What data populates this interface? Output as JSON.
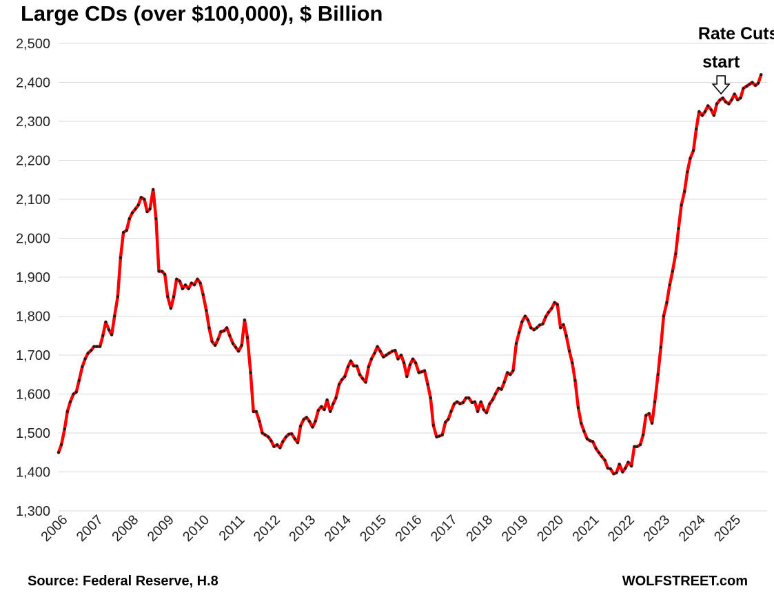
{
  "chart_data": {
    "type": "line",
    "title": "Large CDs (over $100,000), $ Billion",
    "source": "Source: Federal Reserve, H.8",
    "watermark": "WOLFSTREET.com",
    "ylim": [
      1300,
      2500
    ],
    "y_ticks": [
      "1,300",
      "1,400",
      "1,500",
      "1,600",
      "1,700",
      "1,800",
      "1,900",
      "2,000",
      "2,100",
      "2,200",
      "2,300",
      "2,400",
      "2,500"
    ],
    "x_tick_labels": [
      "2006",
      "2007",
      "2008",
      "2009",
      "2010",
      "2011",
      "2012",
      "2013",
      "2014",
      "2015",
      "2016",
      "2017",
      "2018",
      "2019",
      "2020",
      "2021",
      "2022",
      "2023",
      "2024",
      "2025"
    ],
    "x_range": [
      2006.0,
      2026.0
    ],
    "grid": "horizontal",
    "line_color": "#ff0000",
    "marker_color": "#1a1a1a",
    "annotations": [
      {
        "text_line1": "Rate Cuts",
        "text_line2": "start",
        "x": 2024.7
      }
    ],
    "series": [
      {
        "x": [
          2006.0,
          2006.08,
          2006.17,
          2006.25,
          2006.33,
          2006.42,
          2006.5,
          2006.58,
          2006.67,
          2006.75,
          2006.83,
          2006.92,
          2007.0,
          2007.08,
          2007.17,
          2007.25,
          2007.33,
          2007.42,
          2007.5,
          2007.58,
          2007.67,
          2007.75,
          2007.83,
          2007.92,
          2008.0,
          2008.08,
          2008.17,
          2008.25,
          2008.33,
          2008.42,
          2008.5,
          2008.58,
          2008.67,
          2008.75,
          2008.83,
          2008.92,
          2009.0,
          2009.08,
          2009.17,
          2009.25,
          2009.33,
          2009.42,
          2009.5,
          2009.58,
          2009.67,
          2009.75,
          2009.83,
          2009.92,
          2010.0,
          2010.08,
          2010.17,
          2010.25,
          2010.33,
          2010.42,
          2010.5,
          2010.58,
          2010.67,
          2010.75,
          2010.83,
          2010.92,
          2011.0,
          2011.08,
          2011.17,
          2011.25,
          2011.33,
          2011.42,
          2011.5,
          2011.58,
          2011.67,
          2011.75,
          2011.83,
          2011.92,
          2012.0,
          2012.08,
          2012.17,
          2012.25,
          2012.33,
          2012.42,
          2012.5,
          2012.58,
          2012.67,
          2012.75,
          2012.83,
          2012.92,
          2013.0,
          2013.08,
          2013.17,
          2013.25,
          2013.33,
          2013.42,
          2013.5,
          2013.58,
          2013.67,
          2013.75,
          2013.83,
          2013.92,
          2014.0,
          2014.08,
          2014.17,
          2014.25,
          2014.33,
          2014.42,
          2014.5,
          2014.58,
          2014.67,
          2014.75,
          2014.83,
          2014.92,
          2015.0,
          2015.08,
          2015.17,
          2015.25,
          2015.33,
          2015.42,
          2015.5,
          2015.58,
          2015.67,
          2015.75,
          2015.83,
          2015.92,
          2016.0,
          2016.08,
          2016.17,
          2016.25,
          2016.33,
          2016.42,
          2016.5,
          2016.58,
          2016.67,
          2016.75,
          2016.83,
          2016.92,
          2017.0,
          2017.08,
          2017.17,
          2017.25,
          2017.33,
          2017.42,
          2017.5,
          2017.58,
          2017.67,
          2017.75,
          2017.83,
          2017.92,
          2018.0,
          2018.08,
          2018.17,
          2018.25,
          2018.33,
          2018.42,
          2018.5,
          2018.58,
          2018.67,
          2018.75,
          2018.83,
          2018.92,
          2019.0,
          2019.08,
          2019.17,
          2019.25,
          2019.33,
          2019.42,
          2019.5,
          2019.58,
          2019.67,
          2019.75,
          2019.83,
          2019.92,
          2020.0,
          2020.08,
          2020.17,
          2020.25,
          2020.33,
          2020.42,
          2020.5,
          2020.58,
          2020.67,
          2020.75,
          2020.83,
          2020.92,
          2021.0,
          2021.08,
          2021.17,
          2021.25,
          2021.33,
          2021.42,
          2021.5,
          2021.58,
          2021.67,
          2021.75,
          2021.83,
          2021.92,
          2022.0,
          2022.08,
          2022.17,
          2022.25,
          2022.33,
          2022.42,
          2022.5,
          2022.58,
          2022.67,
          2022.75,
          2022.83,
          2022.92,
          2023.0,
          2023.08,
          2023.17,
          2023.25,
          2023.33,
          2023.42,
          2023.5,
          2023.58,
          2023.67,
          2023.75,
          2023.83,
          2023.92,
          2024.0,
          2024.08,
          2024.17,
          2024.25,
          2024.33,
          2024.42,
          2024.5,
          2024.58,
          2024.67,
          2024.75,
          2024.83,
          2024.92,
          2025.0,
          2025.08,
          2025.17,
          2025.25,
          2025.33,
          2025.42,
          2025.5,
          2025.58,
          2025.67,
          2025.75,
          2025.83
        ],
        "y": [
          1450,
          1470,
          1510,
          1555,
          1580,
          1600,
          1605,
          1635,
          1670,
          1690,
          1705,
          1712,
          1722,
          1722,
          1722,
          1750,
          1785,
          1765,
          1752,
          1800,
          1850,
          1950,
          2015,
          2020,
          2050,
          2065,
          2075,
          2085,
          2105,
          2100,
          2068,
          2075,
          2125,
          2050,
          1915,
          1915,
          1907,
          1850,
          1820,
          1850,
          1895,
          1890,
          1870,
          1880,
          1870,
          1885,
          1880,
          1895,
          1885,
          1855,
          1815,
          1770,
          1735,
          1725,
          1740,
          1760,
          1762,
          1770,
          1750,
          1730,
          1720,
          1710,
          1725,
          1790,
          1745,
          1655,
          1555,
          1555,
          1530,
          1500,
          1495,
          1490,
          1480,
          1465,
          1470,
          1462,
          1478,
          1490,
          1497,
          1498,
          1485,
          1475,
          1518,
          1535,
          1540,
          1530,
          1515,
          1530,
          1558,
          1568,
          1560,
          1585,
          1555,
          1575,
          1590,
          1625,
          1637,
          1645,
          1670,
          1685,
          1672,
          1672,
          1650,
          1640,
          1630,
          1670,
          1690,
          1705,
          1722,
          1710,
          1695,
          1700,
          1705,
          1710,
          1712,
          1690,
          1700,
          1680,
          1645,
          1675,
          1690,
          1680,
          1655,
          1657,
          1660,
          1625,
          1590,
          1520,
          1490,
          1492,
          1495,
          1528,
          1535,
          1555,
          1575,
          1580,
          1575,
          1578,
          1590,
          1590,
          1578,
          1580,
          1555,
          1580,
          1560,
          1552,
          1575,
          1585,
          1600,
          1615,
          1612,
          1630,
          1655,
          1650,
          1660,
          1730,
          1758,
          1785,
          1800,
          1790,
          1770,
          1765,
          1770,
          1777,
          1780,
          1798,
          1810,
          1820,
          1835,
          1830,
          1770,
          1778,
          1750,
          1710,
          1680,
          1635,
          1565,
          1525,
          1505,
          1485,
          1480,
          1478,
          1460,
          1450,
          1440,
          1430,
          1410,
          1408,
          1395,
          1398,
          1420,
          1400,
          1410,
          1425,
          1415,
          1465,
          1465,
          1470,
          1495,
          1545,
          1550,
          1525,
          1580,
          1650,
          1720,
          1800,
          1835,
          1880,
          1915,
          1960,
          2025,
          2085,
          2120,
          2170,
          2205,
          2225,
          2280,
          2325,
          2315,
          2325,
          2340,
          2330,
          2315,
          2345,
          2355,
          2360,
          2350,
          2345,
          2355,
          2370,
          2355,
          2360,
          2385,
          2390,
          2395,
          2400,
          2392,
          2398,
          2420
        ]
      }
    ]
  }
}
